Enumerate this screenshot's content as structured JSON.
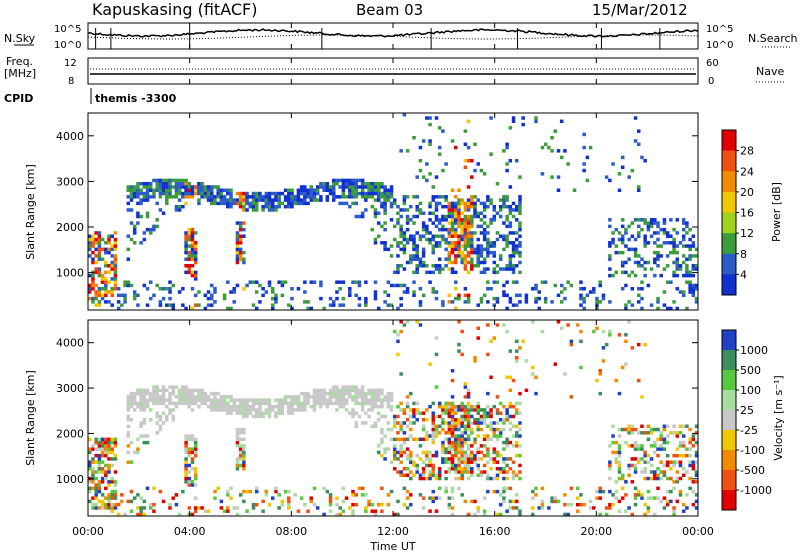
{
  "header": {
    "station": "Kapuskasing (fitACF)",
    "beam": "Beam 03",
    "date": "15/Mar/2012"
  },
  "noise_panel": {
    "left_label": "N.Sky",
    "right_label": "N.Search",
    "ticks": [
      "10^5",
      "10^0"
    ]
  },
  "freq_panel": {
    "left_label_line1": "Freq.",
    "left_label_line2": "[MHz]",
    "left_ticks": [
      "12",
      "8"
    ],
    "right_ticks": [
      "60",
      "0"
    ],
    "right_label": "Nave"
  },
  "cpid_panel": {
    "label": "CPID",
    "value": "themis -3300"
  },
  "x_axis": {
    "label": "Time UT",
    "ticks": [
      "00:00",
      "04:00",
      "08:00",
      "12:00",
      "16:00",
      "20:00",
      "00:00"
    ]
  },
  "power_panel": {
    "ylabel": "Slant Range [km]",
    "yticks": [
      "4000",
      "3000",
      "2000",
      "1000"
    ],
    "colorbar_label": "Power [dB]",
    "colorbar_ticks": [
      "28",
      "24",
      "20",
      "16",
      "12",
      "8",
      "4"
    ],
    "colors": [
      "#e00000",
      "#f05010",
      "#f08c00",
      "#f0c800",
      "#a0d020",
      "#3c9c3c",
      "#2c5cc8",
      "#1030d0"
    ]
  },
  "velocity_panel": {
    "ylabel": "Slant Range [km]",
    "yticks": [
      "4000",
      "3000",
      "2000",
      "1000"
    ],
    "colorbar_label": "Velocity [m s⁻¹]",
    "colorbar_ticks": [
      "1000",
      "500",
      "100",
      "25",
      "-25",
      "-100",
      "-500",
      "-1000"
    ],
    "colors": [
      "#2040c8",
      "#3c8c5c",
      "#58c840",
      "#a8dca0",
      "#c8c8c8",
      "#f0c800",
      "#f08c00",
      "#f05010",
      "#e00000"
    ]
  },
  "chart_data": {
    "type": "heatmap",
    "x_range_hours": [
      0,
      24
    ],
    "y_range_km": [
      180,
      4500
    ],
    "power_db_range": [
      0,
      30
    ],
    "velocity_range_ms": [
      -1000,
      1000
    ],
    "features": [
      {
        "name": "main ionospheric echo band",
        "start_hr": 1.5,
        "end_hr": 12.0,
        "slant_range_km_top": [
          1200,
          3100
        ]
      },
      {
        "name": "near range burst",
        "start_hr": 0.2,
        "end_hr": 0.8,
        "slant_range_km": [
          400,
          1800
        ]
      },
      {
        "name": "patch",
        "start_hr": 3.8,
        "end_hr": 4.3,
        "slant_range_km": [
          800,
          2000
        ]
      },
      {
        "name": "patch",
        "start_hr": 5.8,
        "end_hr": 6.2,
        "slant_range_km": [
          1200,
          2100
        ]
      },
      {
        "name": "afternoon band",
        "start_hr": 12.0,
        "end_hr": 17.0,
        "slant_range_km": [
          1000,
          2800
        ]
      },
      {
        "name": "evening band",
        "start_hr": 20.5,
        "end_hr": 24.0,
        "slant_range_km": [
          900,
          2200
        ]
      }
    ]
  }
}
